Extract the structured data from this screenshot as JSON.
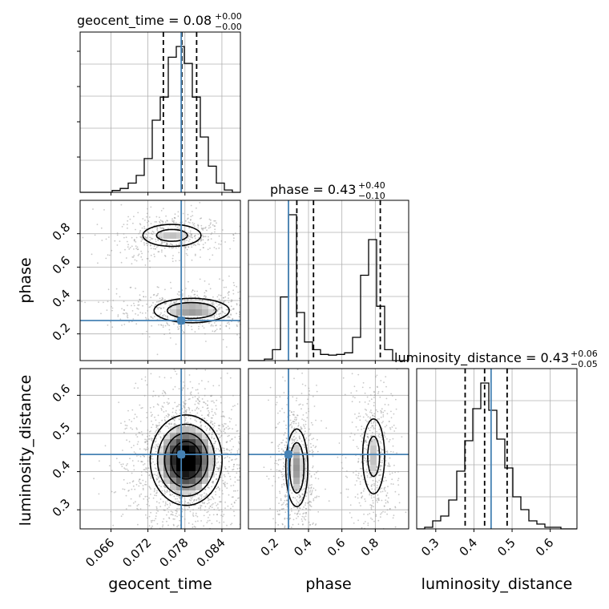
{
  "chart_data": {
    "type": "corner",
    "parameters": [
      "geocent_time",
      "phase",
      "luminosity_distance"
    ],
    "truth": {
      "geocent_time": 0.0774,
      "phase": 0.28,
      "luminosity_distance": 0.445
    },
    "titles": [
      {
        "main": "geocent_time = 0.08",
        "sup": "+0.00",
        "sub": "−0.00"
      },
      {
        "main": "phase = 0.43",
        "sup": "+0.40",
        "sub": "−0.10"
      },
      {
        "main": "luminosity_distance = 0.43",
        "sup": "+0.06",
        "sub": "−0.05"
      }
    ],
    "axis_labels": {
      "x": [
        "geocent_time",
        "phase",
        "luminosity_distance"
      ],
      "y": [
        "phase",
        "luminosity_distance"
      ]
    },
    "ranges": {
      "geocent_time": [
        0.061,
        0.087
      ],
      "phase": [
        0.04,
        1.0
      ],
      "luminosity_distance": [
        0.25,
        0.67
      ]
    },
    "ticks": {
      "geocent_time": {
        "values": [
          0.066,
          0.072,
          0.078,
          0.084
        ],
        "labels": [
          "0.066",
          "0.072",
          "0.078",
          "0.084"
        ]
      },
      "phase": {
        "values": [
          0.2,
          0.4,
          0.6,
          0.8
        ],
        "labels": [
          "0.2",
          "0.4",
          "0.6",
          "0.8"
        ]
      },
      "luminosity_distance": {
        "values": [
          0.3,
          0.4,
          0.5,
          0.6
        ],
        "labels": [
          "0.3",
          "0.4",
          "0.5",
          "0.6"
        ]
      }
    },
    "histograms": {
      "geocent_time": {
        "bin_edges": [
          0.061,
          0.0623,
          0.0636,
          0.0649,
          0.0662,
          0.0675,
          0.0688,
          0.0701,
          0.0714,
          0.0727,
          0.074,
          0.0753,
          0.0766,
          0.0779,
          0.0792,
          0.0805,
          0.0818,
          0.0831,
          0.0844,
          0.0857,
          0.087
        ],
        "counts": [
          0,
          0,
          0,
          0,
          0.012,
          0.025,
          0.06,
          0.11,
          0.22,
          0.47,
          0.62,
          0.88,
          0.95,
          0.84,
          0.62,
          0.36,
          0.17,
          0.06,
          0.015,
          0
        ],
        "quantiles": [
          0.0745,
          0.0775,
          0.0799
        ]
      },
      "phase": {
        "bin_edges": [
          0.04,
          0.088,
          0.136,
          0.184,
          0.232,
          0.28,
          0.328,
          0.376,
          0.424,
          0.472,
          0.52,
          0.568,
          0.616,
          0.664,
          0.712,
          0.76,
          0.808,
          0.856,
          0.904,
          0.952,
          1.0
        ],
        "counts": [
          0,
          0,
          0.01,
          0.07,
          0.41,
          0.94,
          0.31,
          0.12,
          0.07,
          0.04,
          0.035,
          0.04,
          0.05,
          0.15,
          0.55,
          0.78,
          0.35,
          0.07,
          0,
          0
        ],
        "quantiles": [
          0.33,
          0.43,
          0.83
        ]
      },
      "luminosity_distance": {
        "bin_edges": [
          0.25,
          0.271,
          0.292,
          0.313,
          0.334,
          0.355,
          0.376,
          0.397,
          0.418,
          0.439,
          0.46,
          0.481,
          0.502,
          0.523,
          0.544,
          0.565,
          0.586,
          0.607,
          0.628,
          0.649,
          0.67
        ],
        "counts": [
          0,
          0.01,
          0.05,
          0.08,
          0.18,
          0.36,
          0.55,
          0.75,
          0.91,
          0.74,
          0.56,
          0.38,
          0.2,
          0.12,
          0.05,
          0.03,
          0.01,
          0.01,
          0,
          0
        ],
        "quantiles": [
          0.377,
          0.428,
          0.487
        ]
      }
    },
    "density2d": {
      "phase_vs_geocent_time": {
        "modes": [
          {
            "cx": 0.0759,
            "cy": 0.79,
            "sx": 0.0036,
            "sy": 0.05,
            "rot": 0.35,
            "w": 0.45
          },
          {
            "cx": 0.0791,
            "cy": 0.34,
            "sx": 0.0042,
            "sy": 0.05,
            "rot": 0.12,
            "w": 0.55
          }
        ]
      },
      "luminosity_distance_vs_geocent_time": {
        "modes": [
          {
            "cx": 0.0782,
            "cy": 0.43,
            "sx": 0.0032,
            "sy": 0.065,
            "rot": -0.6,
            "w": 1.0
          }
        ]
      },
      "luminosity_distance_vs_phase": {
        "modes": [
          {
            "cx": 0.33,
            "cy": 0.41,
            "sx": 0.045,
            "sy": 0.07,
            "rot": 0.0,
            "w": 0.55
          },
          {
            "cx": 0.79,
            "cy": 0.44,
            "sx": 0.05,
            "sy": 0.075,
            "rot": 0.0,
            "w": 0.45
          }
        ]
      }
    },
    "contour_levels": [
      0.38,
      0.7,
      1.1,
      1.5
    ],
    "colors": {
      "truth": "#4682b4",
      "hist": "#000000",
      "grid": "#b0b0b0",
      "quantile": "#000000",
      "scatter": "#9a9a9a",
      "density_dark": "#000000",
      "density_light": "#ffffff"
    },
    "grid": true
  }
}
